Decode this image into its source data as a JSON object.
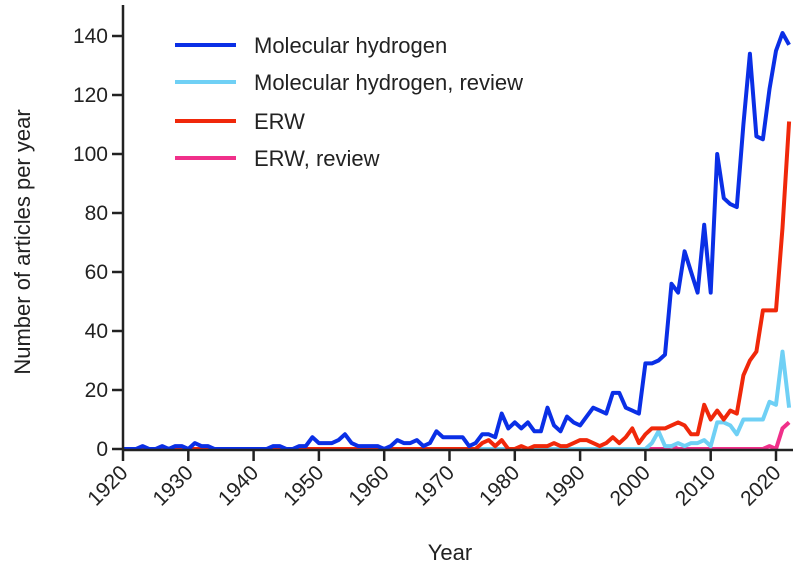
{
  "chart_data": {
    "type": "line",
    "title": "",
    "xlabel": "Year",
    "ylabel": "Number of articles per year",
    "xlim": [
      1920,
      2022
    ],
    "ylim": [
      0,
      140
    ],
    "xticks": [
      1920,
      1930,
      1940,
      1950,
      1960,
      1970,
      1980,
      1990,
      2000,
      2010,
      2020
    ],
    "yticks": [
      0,
      20,
      40,
      60,
      80,
      100,
      120,
      140
    ],
    "grid": false,
    "legend_position": "top-left",
    "start_year": 1920,
    "series": [
      {
        "name": "Molecular hydrogen",
        "color": "#0a2fe6",
        "values": [
          0,
          0,
          0,
          1,
          0,
          0,
          1,
          0,
          1,
          1,
          0,
          2,
          1,
          1,
          0,
          0,
          0,
          0,
          0,
          0,
          0,
          0,
          0,
          1,
          1,
          0,
          0,
          1,
          1,
          4,
          2,
          2,
          2,
          3,
          5,
          2,
          1,
          1,
          1,
          1,
          0,
          1,
          3,
          2,
          2,
          3,
          1,
          2,
          6,
          4,
          4,
          4,
          4,
          1,
          2,
          5,
          5,
          4,
          12,
          7,
          9,
          7,
          9,
          6,
          6,
          14,
          8,
          6,
          11,
          9,
          8,
          11,
          14,
          13,
          12,
          19,
          19,
          14,
          13,
          12,
          29,
          29,
          30,
          32,
          56,
          53,
          67,
          60,
          53,
          76,
          53,
          100,
          85,
          83,
          82,
          110,
          134,
          106,
          105,
          122,
          135,
          141,
          137
        ]
      },
      {
        "name": "Molecular hydrogen, review",
        "color": "#6fd0f5",
        "values": [
          0,
          0,
          0,
          0,
          0,
          0,
          0,
          0,
          0,
          0,
          0,
          0,
          0,
          0,
          0,
          0,
          0,
          0,
          0,
          0,
          0,
          0,
          0,
          0,
          0,
          0,
          0,
          0,
          0,
          0,
          0,
          0,
          0,
          0,
          0,
          0,
          0,
          0,
          0,
          0,
          0,
          0,
          0,
          0,
          0,
          0,
          0,
          0,
          0,
          0,
          0,
          0,
          0,
          0,
          0,
          0,
          0,
          0,
          0,
          0,
          0,
          0,
          0,
          0,
          0,
          0,
          0,
          0,
          0,
          0,
          0,
          0,
          0,
          0,
          0,
          0,
          0,
          0,
          0,
          0,
          0,
          2,
          6,
          1,
          1,
          2,
          1,
          2,
          2,
          3,
          1,
          9,
          9,
          8,
          5,
          10,
          10,
          10,
          10,
          16,
          15,
          33,
          14
        ]
      },
      {
        "name": "ERW",
        "color": "#f0280a",
        "values": [
          0,
          0,
          0,
          0,
          0,
          0,
          0,
          0,
          0,
          0,
          0,
          0,
          0,
          0,
          0,
          0,
          0,
          0,
          0,
          0,
          0,
          0,
          0,
          0,
          0,
          0,
          0,
          0,
          0,
          0,
          0,
          0,
          0,
          0,
          0,
          0,
          0,
          0,
          0,
          0,
          0,
          0,
          0,
          0,
          0,
          0,
          0,
          0,
          0,
          0,
          0,
          0,
          0,
          0,
          0,
          2,
          3,
          1,
          3,
          0,
          0,
          1,
          0,
          1,
          1,
          1,
          2,
          1,
          1,
          2,
          3,
          3,
          2,
          1,
          2,
          4,
          2,
          4,
          7,
          2,
          5,
          7,
          7,
          7,
          8,
          9,
          8,
          5,
          5,
          15,
          10,
          13,
          10,
          13,
          12,
          25,
          30,
          33,
          47,
          47,
          47,
          75,
          111
        ]
      },
      {
        "name": "ERW, review",
        "color": "#f0308a",
        "values": [
          0,
          0,
          0,
          0,
          0,
          0,
          0,
          0,
          0,
          0,
          0,
          0,
          0,
          0,
          0,
          0,
          0,
          0,
          0,
          0,
          0,
          0,
          0,
          0,
          0,
          0,
          0,
          0,
          0,
          0,
          0,
          0,
          0,
          0,
          0,
          0,
          0,
          0,
          0,
          0,
          0,
          0,
          0,
          0,
          0,
          0,
          0,
          0,
          0,
          0,
          0,
          0,
          0,
          0,
          0,
          0,
          0,
          0,
          0,
          0,
          0,
          0,
          0,
          0,
          0,
          0,
          0,
          0,
          0,
          0,
          0,
          0,
          0,
          0,
          0,
          0,
          0,
          0,
          0,
          0,
          0,
          0,
          0,
          0,
          1,
          0,
          0,
          0,
          0,
          0,
          0,
          0,
          0,
          0,
          0,
          0,
          0,
          0,
          0,
          1,
          0,
          7,
          9
        ]
      }
    ]
  }
}
